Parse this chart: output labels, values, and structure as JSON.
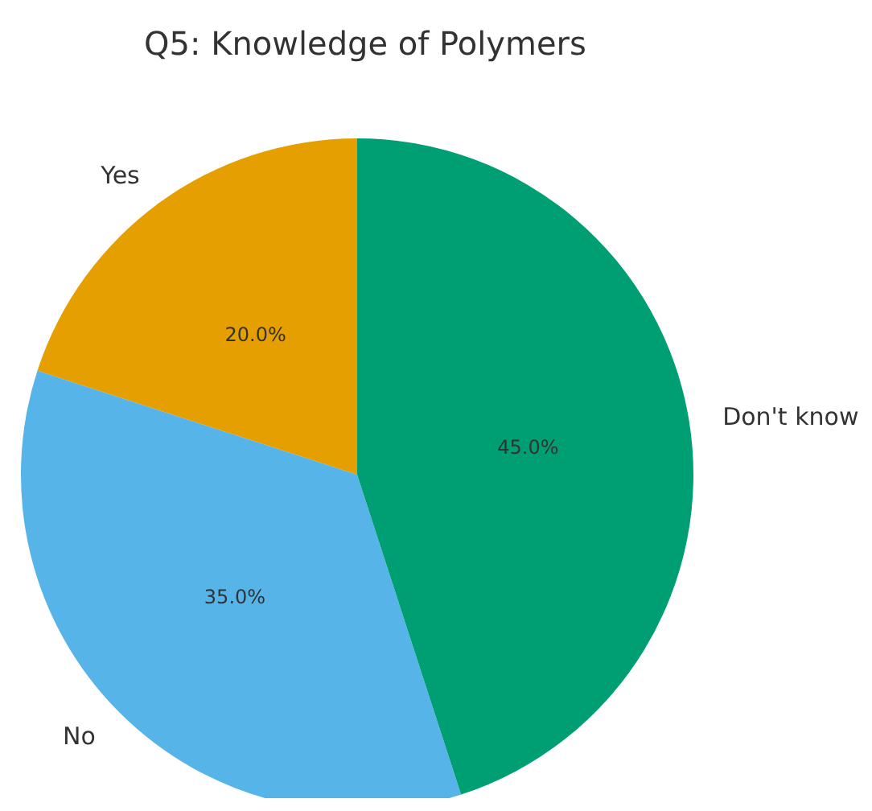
{
  "chart_data": {
    "type": "pie",
    "title": "Q5: Knowledge of Polymers",
    "categories": [
      "Yes",
      "No",
      "Don't know"
    ],
    "values": [
      20,
      35,
      45
    ],
    "colors": [
      "#e69f00",
      "#56b4e9",
      "#009e73"
    ],
    "value_labels": [
      "20.0%",
      "35.0%",
      "45.0%"
    ]
  }
}
